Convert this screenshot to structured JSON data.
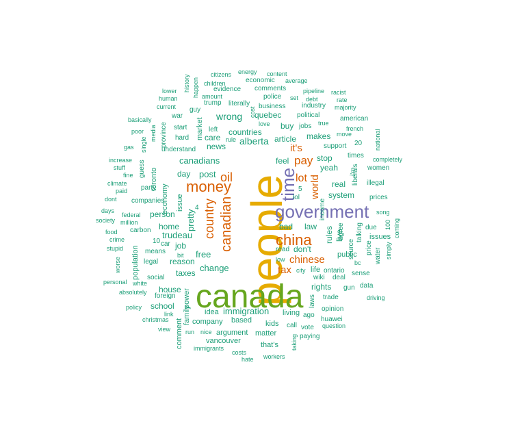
{
  "chart_data": {
    "type": "wordcloud",
    "title": "",
    "palette": {
      "teal": "#1b9e77",
      "orange": "#d95f02",
      "purple": "#7570b3",
      "green": "#66a61e",
      "gold": "#e6ab02"
    },
    "words": [
      {
        "text": "people",
        "tier": 1,
        "color": "gold"
      },
      {
        "text": "canada",
        "tier": 2,
        "color": "green"
      },
      {
        "text": "government",
        "tier": 3,
        "color": "purple"
      },
      {
        "text": "time",
        "tier": 3,
        "color": "purple"
      },
      {
        "text": "money",
        "tier": 3,
        "color": "orange"
      },
      {
        "text": "china",
        "tier": 3,
        "color": "orange"
      },
      {
        "text": "canadian",
        "tier": 4,
        "color": "orange"
      },
      {
        "text": "country",
        "tier": 4,
        "color": "orange"
      },
      {
        "text": "oil",
        "tier": 4,
        "color": "orange"
      },
      {
        "text": "chinese",
        "tier": 5,
        "color": "orange"
      },
      {
        "text": "pay",
        "tier": 5,
        "color": "orange"
      },
      {
        "text": "lot",
        "tier": 5,
        "color": "orange"
      },
      {
        "text": "it's",
        "tier": 5,
        "color": "orange"
      },
      {
        "text": "tax",
        "tier": 5,
        "color": "orange"
      },
      {
        "text": "world",
        "tier": 5,
        "color": "orange"
      },
      {
        "text": "wrong",
        "tier": 6,
        "color": "teal"
      },
      {
        "text": "alberta",
        "tier": 6,
        "color": "teal"
      },
      {
        "text": "canadians",
        "tier": 6,
        "color": "teal"
      },
      {
        "text": "trudeau",
        "tier": 6,
        "color": "teal"
      },
      {
        "text": "free",
        "tier": 6,
        "color": "teal"
      },
      {
        "text": "change",
        "tier": 6,
        "color": "teal"
      },
      {
        "text": "immigration",
        "tier": 6,
        "color": "teal"
      },
      {
        "text": "post",
        "tier": 6,
        "color": "teal"
      },
      {
        "text": "pretty",
        "tier": 6,
        "color": "teal"
      },
      {
        "text": "quebec",
        "tier": 7,
        "color": "teal"
      },
      {
        "text": "countries",
        "tier": 7,
        "color": "teal"
      },
      {
        "text": "news",
        "tier": 7,
        "color": "teal"
      },
      {
        "text": "care",
        "tier": 7,
        "color": "teal"
      },
      {
        "text": "article",
        "tier": 7,
        "color": "teal"
      },
      {
        "text": "makes",
        "tier": 7,
        "color": "teal"
      },
      {
        "text": "buy",
        "tier": 7,
        "color": "teal"
      },
      {
        "text": "stop",
        "tier": 7,
        "color": "teal"
      },
      {
        "text": "feel",
        "tier": 7,
        "color": "teal"
      },
      {
        "text": "yeah",
        "tier": 7,
        "color": "teal"
      },
      {
        "text": "real",
        "tier": 7,
        "color": "teal"
      },
      {
        "text": "system",
        "tier": 7,
        "color": "teal"
      },
      {
        "text": "law",
        "tier": 7,
        "color": "teal"
      },
      {
        "text": "bad",
        "tier": 7,
        "color": "teal"
      },
      {
        "text": "don't",
        "tier": 7,
        "color": "teal"
      },
      {
        "text": "rules",
        "tier": 7,
        "color": "teal"
      },
      {
        "text": "live",
        "tier": 7,
        "color": "teal"
      },
      {
        "text": "rights",
        "tier": 7,
        "color": "teal"
      },
      {
        "text": "day",
        "tier": 7,
        "color": "teal"
      },
      {
        "text": "person",
        "tier": 7,
        "color": "teal"
      },
      {
        "text": "home",
        "tier": 7,
        "color": "teal"
      },
      {
        "text": "job",
        "tier": 7,
        "color": "teal"
      },
      {
        "text": "reason",
        "tier": 7,
        "color": "teal"
      },
      {
        "text": "taxes",
        "tier": 7,
        "color": "teal"
      },
      {
        "text": "house",
        "tier": 7,
        "color": "teal"
      },
      {
        "text": "school",
        "tier": 7,
        "color": "teal"
      },
      {
        "text": "company",
        "tier": 7,
        "color": "teal"
      },
      {
        "text": "based",
        "tier": 7,
        "color": "teal"
      },
      {
        "text": "kids",
        "tier": 7,
        "color": "teal"
      },
      {
        "text": "matter",
        "tier": 7,
        "color": "teal"
      },
      {
        "text": "living",
        "tier": 7,
        "color": "teal"
      },
      {
        "text": "vancouver",
        "tier": 7,
        "color": "teal"
      },
      {
        "text": "that's",
        "tier": 7,
        "color": "teal"
      },
      {
        "text": "argument",
        "tier": 7,
        "color": "teal"
      },
      {
        "text": "idea",
        "tier": 7,
        "color": "teal"
      },
      {
        "text": "public",
        "tier": 7,
        "color": "teal"
      },
      {
        "text": "life",
        "tier": 7,
        "color": "teal"
      },
      {
        "text": "issues",
        "tier": 7,
        "color": "teal"
      },
      {
        "text": "toronto",
        "tier": 7,
        "color": "teal"
      },
      {
        "text": "economy",
        "tier": 7,
        "color": "teal"
      },
      {
        "text": "population",
        "tier": 7,
        "color": "teal"
      },
      {
        "text": "comment",
        "tier": 7,
        "color": "teal"
      },
      {
        "text": "family",
        "tier": 7,
        "color": "teal"
      },
      {
        "text": "power",
        "tier": 7,
        "color": "teal"
      },
      {
        "text": "issue",
        "tier": 7,
        "color": "teal"
      },
      {
        "text": "market",
        "tier": 7,
        "color": "teal"
      },
      {
        "text": "business",
        "tier": 8,
        "color": "teal"
      },
      {
        "text": "political",
        "tier": 8,
        "color": "teal"
      },
      {
        "text": "american",
        "tier": 8,
        "color": "teal"
      },
      {
        "text": "jobs",
        "tier": 8,
        "color": "teal"
      },
      {
        "text": "support",
        "tier": 8,
        "color": "teal"
      },
      {
        "text": "times",
        "tier": 8,
        "color": "teal"
      },
      {
        "text": "women",
        "tier": 8,
        "color": "teal"
      },
      {
        "text": "illegal",
        "tier": 8,
        "color": "teal"
      },
      {
        "text": "prices",
        "tier": 8,
        "color": "teal"
      },
      {
        "text": "sense",
        "tier": 8,
        "color": "teal"
      },
      {
        "text": "data",
        "tier": 8,
        "color": "teal"
      },
      {
        "text": "gun",
        "tier": 8,
        "color": "teal"
      },
      {
        "text": "trade",
        "tier": 8,
        "color": "teal"
      },
      {
        "text": "deal",
        "tier": 8,
        "color": "teal"
      },
      {
        "text": "ontario",
        "tier": 8,
        "color": "teal"
      },
      {
        "text": "opinion",
        "tier": 8,
        "color": "teal"
      },
      {
        "text": "huawei",
        "tier": 8,
        "color": "teal"
      },
      {
        "text": "paying",
        "tier": 8,
        "color": "teal"
      },
      {
        "text": "vote",
        "tier": 8,
        "color": "teal"
      },
      {
        "text": "call",
        "tier": 8,
        "color": "teal"
      },
      {
        "text": "ago",
        "tier": 8,
        "color": "teal"
      },
      {
        "text": "laws",
        "tier": 8,
        "color": "teal"
      },
      {
        "text": "social",
        "tier": 8,
        "color": "teal"
      },
      {
        "text": "legal",
        "tier": 8,
        "color": "teal"
      },
      {
        "text": "means",
        "tier": 8,
        "color": "teal"
      },
      {
        "text": "carbon",
        "tier": 8,
        "color": "teal"
      },
      {
        "text": "companies",
        "tier": 8,
        "color": "teal"
      },
      {
        "text": "party",
        "tier": 8,
        "color": "teal"
      },
      {
        "text": "understand",
        "tier": 8,
        "color": "teal"
      },
      {
        "text": "hard",
        "tier": 8,
        "color": "teal"
      },
      {
        "text": "start",
        "tier": 8,
        "color": "teal"
      },
      {
        "text": "war",
        "tier": 8,
        "color": "teal"
      },
      {
        "text": "trump",
        "tier": 8,
        "color": "teal"
      },
      {
        "text": "evidence",
        "tier": 8,
        "color": "teal"
      },
      {
        "text": "comments",
        "tier": 8,
        "color": "teal"
      },
      {
        "text": "economic",
        "tier": 8,
        "color": "teal"
      },
      {
        "text": "police",
        "tier": 8,
        "color": "teal"
      },
      {
        "text": "literally",
        "tier": 8,
        "color": "teal"
      },
      {
        "text": "industry",
        "tier": 8,
        "color": "teal"
      },
      {
        "text": "foreign",
        "tier": 8,
        "color": "teal"
      },
      {
        "text": "read",
        "tier": 8,
        "color": "teal"
      },
      {
        "text": "source",
        "tier": 8,
        "color": "teal"
      },
      {
        "text": "talking",
        "tier": 8,
        "color": "teal"
      },
      {
        "text": "agree",
        "tier": 8,
        "color": "teal"
      },
      {
        "text": "income",
        "tier": 8,
        "color": "teal"
      },
      {
        "text": "liberals",
        "tier": 8,
        "color": "teal"
      },
      {
        "text": "due",
        "tier": 8,
        "color": "teal"
      },
      {
        "text": "price",
        "tier": 8,
        "color": "teal"
      },
      {
        "text": "water",
        "tier": 8,
        "color": "teal"
      },
      {
        "text": "wiki",
        "tier": 8,
        "color": "teal"
      },
      {
        "text": "left",
        "tier": 8,
        "color": "teal"
      },
      {
        "text": "guy",
        "tier": 8,
        "color": "teal"
      },
      {
        "text": "province",
        "tier": 8,
        "color": "teal"
      },
      {
        "text": "guess",
        "tier": 8,
        "color": "teal"
      },
      {
        "text": "20",
        "tier": 8,
        "color": "teal"
      },
      {
        "text": "car",
        "tier": 8,
        "color": "teal"
      },
      {
        "text": "10",
        "tier": 8,
        "color": "teal"
      },
      {
        "text": "4",
        "tier": 8,
        "color": "teal"
      },
      {
        "text": "lol",
        "tier": 8,
        "color": "teal"
      },
      {
        "text": "5",
        "tier": 8,
        "color": "teal"
      },
      {
        "text": "i'm",
        "tier": 8,
        "color": "teal"
      },
      {
        "text": "citizens",
        "tier": 9,
        "color": "teal"
      },
      {
        "text": "energy",
        "tier": 9,
        "color": "teal"
      },
      {
        "text": "content",
        "tier": 9,
        "color": "teal"
      },
      {
        "text": "average",
        "tier": 9,
        "color": "teal"
      },
      {
        "text": "history",
        "tier": 9,
        "color": "teal"
      },
      {
        "text": "happen",
        "tier": 9,
        "color": "teal"
      },
      {
        "text": "children",
        "tier": 9,
        "color": "teal"
      },
      {
        "text": "lower",
        "tier": 9,
        "color": "teal"
      },
      {
        "text": "human",
        "tier": 9,
        "color": "teal"
      },
      {
        "text": "current",
        "tier": 9,
        "color": "teal"
      },
      {
        "text": "amount",
        "tier": 9,
        "color": "teal"
      },
      {
        "text": "pipeline",
        "tier": 9,
        "color": "teal"
      },
      {
        "text": "racist",
        "tier": 9,
        "color": "teal"
      },
      {
        "text": "debt",
        "tier": 9,
        "color": "teal"
      },
      {
        "text": "rate",
        "tier": 9,
        "color": "teal"
      },
      {
        "text": "majority",
        "tier": 9,
        "color": "teal"
      },
      {
        "text": "set",
        "tier": 9,
        "color": "teal"
      },
      {
        "text": "cost",
        "tier": 9,
        "color": "teal"
      },
      {
        "text": "love",
        "tier": 9,
        "color": "teal"
      },
      {
        "text": "true",
        "tier": 9,
        "color": "teal"
      },
      {
        "text": "french",
        "tier": 9,
        "color": "teal"
      },
      {
        "text": "move",
        "tier": 9,
        "color": "teal"
      },
      {
        "text": "rule",
        "tier": 9,
        "color": "teal"
      },
      {
        "text": "basically",
        "tier": 9,
        "color": "teal"
      },
      {
        "text": "poor",
        "tier": 9,
        "color": "teal"
      },
      {
        "text": "media",
        "tier": 9,
        "color": "teal"
      },
      {
        "text": "gas",
        "tier": 9,
        "color": "teal"
      },
      {
        "text": "single",
        "tier": 9,
        "color": "teal"
      },
      {
        "text": "national",
        "tier": 9,
        "color": "teal"
      },
      {
        "text": "completely",
        "tier": 9,
        "color": "teal"
      },
      {
        "text": "increase",
        "tier": 9,
        "color": "teal"
      },
      {
        "text": "stuff",
        "tier": 9,
        "color": "teal"
      },
      {
        "text": "fine",
        "tier": 9,
        "color": "teal"
      },
      {
        "text": "climate",
        "tier": 9,
        "color": "teal"
      },
      {
        "text": "paid",
        "tier": 9,
        "color": "teal"
      },
      {
        "text": "dont",
        "tier": 9,
        "color": "teal"
      },
      {
        "text": "song",
        "tier": 9,
        "color": "teal"
      },
      {
        "text": "days",
        "tier": 9,
        "color": "teal"
      },
      {
        "text": "federal",
        "tier": 9,
        "color": "teal"
      },
      {
        "text": "society",
        "tier": 9,
        "color": "teal"
      },
      {
        "text": "million",
        "tier": 9,
        "color": "teal"
      },
      {
        "text": "food",
        "tier": 9,
        "color": "teal"
      },
      {
        "text": "100",
        "tier": 9,
        "color": "teal"
      },
      {
        "text": "coming",
        "tier": 9,
        "color": "teal"
      },
      {
        "text": "crime",
        "tier": 9,
        "color": "teal"
      },
      {
        "text": "stupid",
        "tier": 9,
        "color": "teal"
      },
      {
        "text": "bit",
        "tier": 9,
        "color": "teal"
      },
      {
        "text": "simply",
        "tier": 9,
        "color": "teal"
      },
      {
        "text": "worse",
        "tier": 9,
        "color": "teal"
      },
      {
        "text": "bc",
        "tier": 9,
        "color": "teal"
      },
      {
        "text": "low",
        "tier": 9,
        "color": "teal"
      },
      {
        "text": "city",
        "tier": 9,
        "color": "teal"
      },
      {
        "text": "personal",
        "tier": 9,
        "color": "teal"
      },
      {
        "text": "white",
        "tier": 9,
        "color": "teal"
      },
      {
        "text": "absolutely",
        "tier": 9,
        "color": "teal"
      },
      {
        "text": "driving",
        "tier": 9,
        "color": "teal"
      },
      {
        "text": "policy",
        "tier": 9,
        "color": "teal"
      },
      {
        "text": "link",
        "tier": 9,
        "color": "teal"
      },
      {
        "text": "christmas",
        "tier": 9,
        "color": "teal"
      },
      {
        "text": "view",
        "tier": 9,
        "color": "teal"
      },
      {
        "text": "question",
        "tier": 9,
        "color": "teal"
      },
      {
        "text": "run",
        "tier": 9,
        "color": "teal"
      },
      {
        "text": "nice",
        "tier": 9,
        "color": "teal"
      },
      {
        "text": "immigrants",
        "tier": 9,
        "color": "teal"
      },
      {
        "text": "costs",
        "tier": 9,
        "color": "teal"
      },
      {
        "text": "hate",
        "tier": 9,
        "color": "teal"
      },
      {
        "text": "workers",
        "tier": 9,
        "color": "teal"
      },
      {
        "text": "taking",
        "tier": 9,
        "color": "teal"
      }
    ]
  }
}
